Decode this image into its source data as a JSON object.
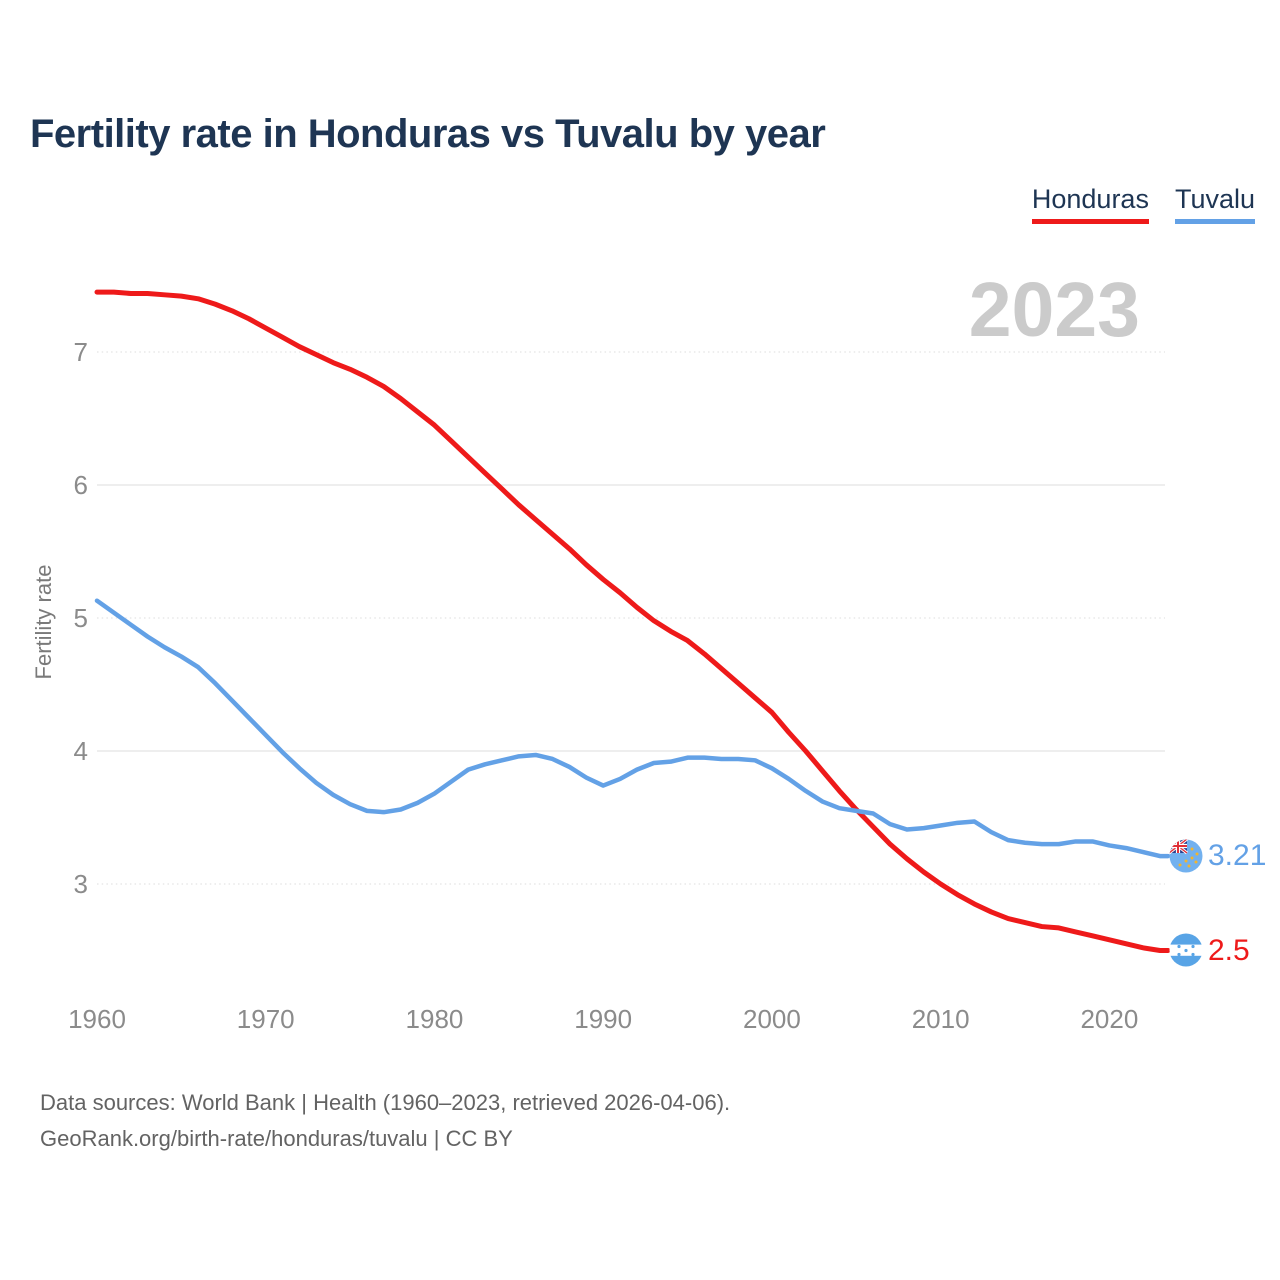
{
  "title": "Fertility rate in Honduras vs Tuvalu by year",
  "watermark_year": "2023",
  "legend": {
    "honduras_label": "Honduras",
    "tuvalu_label": "Tuvalu"
  },
  "colors": {
    "honduras": "#ee1a1a",
    "tuvalu": "#63a1e6",
    "title_navy": "#1e3553",
    "gridline": "#e8e8e8",
    "tick_gray": "#8b8b8b",
    "watermark_gray": "#cbcbcb"
  },
  "y_axis": {
    "title": "Fertility rate"
  },
  "end_labels": {
    "tuvalu_value": "3.21",
    "honduras_value": "2.5",
    "tuvalu_flag": "tuvalu-flag-icon",
    "honduras_flag": "honduras-flag-icon"
  },
  "footer": {
    "sources_line": "Data sources: World Bank | Health (1960–2023, retrieved 2026-04-06).",
    "attribution_line": "GeoRank.org/birth-rate/honduras/tuvalu | CC BY"
  },
  "chart_data": {
    "type": "line",
    "title": "Fertility rate in Honduras vs Tuvalu by year",
    "xlabel": "",
    "ylabel": "Fertility rate",
    "x": [
      1960,
      1961,
      1962,
      1963,
      1964,
      1965,
      1966,
      1967,
      1968,
      1969,
      1970,
      1971,
      1972,
      1973,
      1974,
      1975,
      1976,
      1977,
      1978,
      1979,
      1980,
      1981,
      1982,
      1983,
      1984,
      1985,
      1986,
      1987,
      1988,
      1989,
      1990,
      1991,
      1992,
      1993,
      1994,
      1995,
      1996,
      1997,
      1998,
      1999,
      2000,
      2001,
      2002,
      2003,
      2004,
      2005,
      2006,
      2007,
      2008,
      2009,
      2010,
      2011,
      2012,
      2013,
      2014,
      2015,
      2016,
      2017,
      2018,
      2019,
      2020,
      2021,
      2022,
      2023
    ],
    "series": [
      {
        "name": "Honduras",
        "color": "#ee1a1a",
        "values": [
          7.45,
          7.45,
          7.44,
          7.44,
          7.43,
          7.42,
          7.4,
          7.36,
          7.31,
          7.25,
          7.18,
          7.11,
          7.04,
          6.98,
          6.92,
          6.87,
          6.81,
          6.74,
          6.65,
          6.55,
          6.45,
          6.33,
          6.21,
          6.09,
          5.97,
          5.85,
          5.74,
          5.63,
          5.52,
          5.4,
          5.29,
          5.19,
          5.08,
          4.98,
          4.9,
          4.83,
          4.73,
          4.62,
          4.51,
          4.4,
          4.29,
          4.14,
          4.0,
          3.85,
          3.7,
          3.56,
          3.43,
          3.3,
          3.19,
          3.09,
          3.0,
          2.92,
          2.85,
          2.79,
          2.74,
          2.71,
          2.68,
          2.67,
          2.64,
          2.61,
          2.58,
          2.55,
          2.52,
          2.5
        ]
      },
      {
        "name": "Tuvalu",
        "color": "#63a1e6",
        "values": [
          5.13,
          5.04,
          4.95,
          4.86,
          4.78,
          4.71,
          4.63,
          4.51,
          4.38,
          4.25,
          4.12,
          3.99,
          3.87,
          3.76,
          3.67,
          3.6,
          3.55,
          3.54,
          3.56,
          3.61,
          3.68,
          3.77,
          3.86,
          3.9,
          3.93,
          3.96,
          3.97,
          3.94,
          3.88,
          3.8,
          3.74,
          3.79,
          3.86,
          3.91,
          3.92,
          3.95,
          3.95,
          3.94,
          3.94,
          3.93,
          3.87,
          3.79,
          3.7,
          3.62,
          3.57,
          3.55,
          3.53,
          3.45,
          3.41,
          3.42,
          3.44,
          3.46,
          3.47,
          3.39,
          3.33,
          3.31,
          3.3,
          3.3,
          3.32,
          3.32,
          3.29,
          3.27,
          3.24,
          3.21
        ]
      }
    ],
    "xticks": [
      1960,
      1970,
      1980,
      1990,
      2000,
      2010,
      2020
    ],
    "yticks": [
      3,
      4,
      5,
      6,
      7
    ],
    "xlim": [
      1960,
      2023
    ],
    "ylim": [
      2.3,
      7.6
    ],
    "grid": true,
    "legend_position": "top-right",
    "end_value_labels": {
      "Honduras": 2.5,
      "Tuvalu": 3.21
    }
  }
}
